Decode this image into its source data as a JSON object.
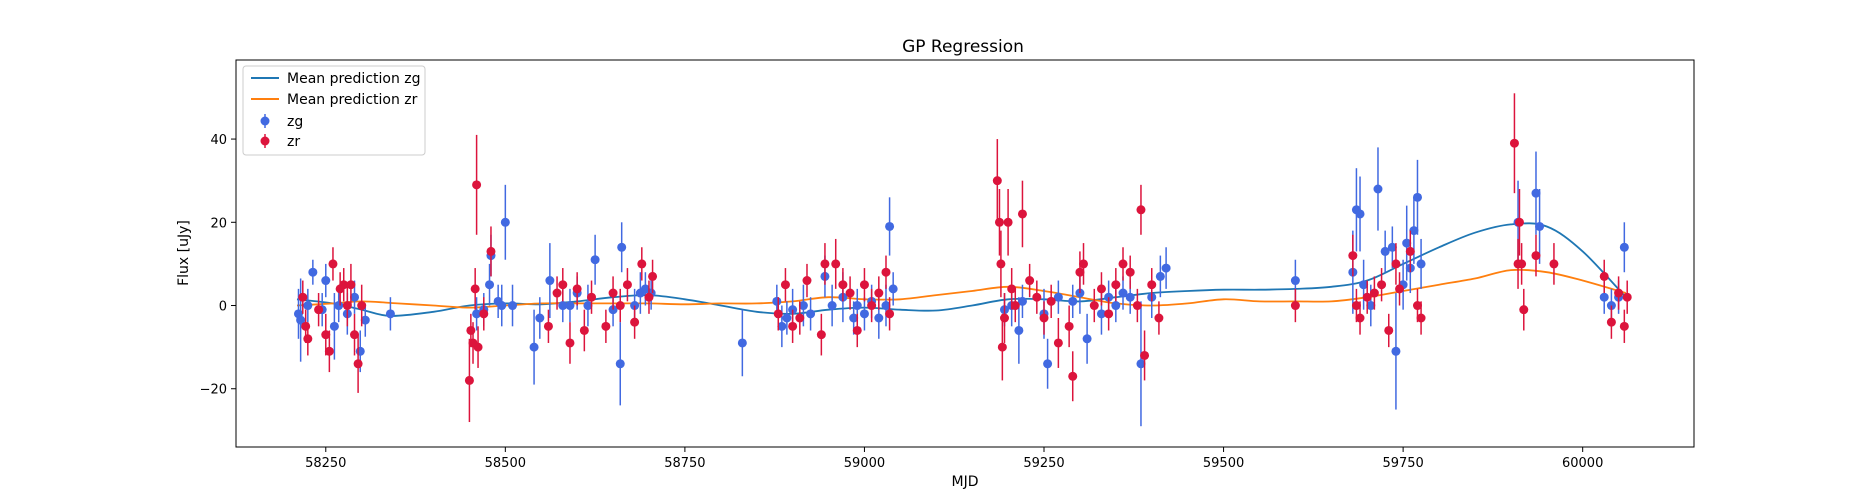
{
  "chart_data": {
    "type": "scatter",
    "title": "GP Regression",
    "xlabel": "MJD",
    "ylabel": "Flux [uJy]",
    "xlim": [
      58125,
      60155
    ],
    "ylim": [
      -34,
      59
    ],
    "xticks": [
      58250,
      58500,
      58750,
      59000,
      59250,
      59500,
      59750,
      60000
    ],
    "yticks": [
      -20,
      0,
      20,
      40
    ],
    "grid": false,
    "legend_position": "top-left",
    "legend_entries": [
      "Mean prediction zg",
      "Mean prediction zr",
      "zg",
      "zr"
    ],
    "colors": {
      "mean_zg": "#1f77b4",
      "mean_zr": "#ff7f0e",
      "zg": "#4169e1",
      "zr": "#dc143c"
    },
    "lines": [
      {
        "name": "Mean prediction zg",
        "x": [
          58210,
          58260,
          58300,
          58340,
          58400,
          58450,
          58500,
          58550,
          58600,
          58650,
          58700,
          58750,
          58800,
          58850,
          58900,
          58950,
          59000,
          59050,
          59100,
          59150,
          59200,
          59250,
          59300,
          59350,
          59400,
          59450,
          59500,
          59550,
          59600,
          59650,
          59700,
          59750,
          59800,
          59850,
          59900,
          59950,
          60000,
          60060
        ],
        "y": [
          1.5,
          0.5,
          -1,
          -2.5,
          -1.5,
          0,
          0.5,
          0.3,
          1,
          2,
          2.5,
          1.5,
          0,
          -1.5,
          -2,
          -1,
          -0.5,
          -1,
          -1.2,
          0,
          1.5,
          1.5,
          1,
          2,
          3,
          3.5,
          3.8,
          3.8,
          4,
          4.5,
          6,
          10,
          14,
          17.5,
          19.5,
          19,
          13,
          2
        ]
      },
      {
        "name": "Mean prediction zr",
        "x": [
          58210,
          58260,
          58300,
          58350,
          58400,
          58450,
          58500,
          58550,
          58600,
          58650,
          58700,
          58750,
          58800,
          58850,
          58900,
          58950,
          59000,
          59050,
          59100,
          59150,
          59200,
          59250,
          59300,
          59350,
          59400,
          59450,
          59500,
          59550,
          59600,
          59650,
          59700,
          59750,
          59800,
          59850,
          59900,
          59950,
          60000,
          60060
        ],
        "y": [
          0,
          0.5,
          1,
          0.5,
          0,
          -0.5,
          0,
          0.5,
          0.5,
          0.5,
          0.5,
          0.3,
          0.5,
          0.5,
          1,
          2,
          1.5,
          1.5,
          2.5,
          3.5,
          4.5,
          3.5,
          2,
          0.5,
          0,
          0.5,
          1.5,
          1,
          1,
          1,
          2,
          3.5,
          5,
          6.5,
          8.5,
          8,
          6,
          3
        ]
      }
    ],
    "series": [
      {
        "name": "zg",
        "points": [
          [
            58212,
            -2,
            6
          ],
          [
            58215,
            -3.5,
            10
          ],
          [
            58225,
            0,
            4
          ],
          [
            58232,
            8,
            3
          ],
          [
            58245,
            -1,
            4
          ],
          [
            58250,
            6,
            4
          ],
          [
            58262,
            -5,
            8
          ],
          [
            58268,
            0,
            4
          ],
          [
            58280,
            -2,
            5
          ],
          [
            58290,
            2,
            4
          ],
          [
            58298,
            -11,
            5
          ],
          [
            58305,
            -3.5,
            4
          ],
          [
            58340,
            -2,
            4
          ],
          [
            58460,
            -2,
            4
          ],
          [
            58470,
            -1,
            4
          ],
          [
            58478,
            5,
            5
          ],
          [
            58480,
            12,
            5
          ],
          [
            58490,
            1,
            4
          ],
          [
            58495,
            0,
            5
          ],
          [
            58500,
            20,
            9
          ],
          [
            58510,
            0,
            5
          ],
          [
            58540,
            -10,
            9
          ],
          [
            58548,
            -3,
            5
          ],
          [
            58562,
            6,
            9
          ],
          [
            58580,
            0,
            4
          ],
          [
            58590,
            0,
            4
          ],
          [
            58600,
            3,
            4
          ],
          [
            58615,
            0,
            5
          ],
          [
            58625,
            11,
            6
          ],
          [
            58650,
            -1,
            4
          ],
          [
            58660,
            -14,
            10
          ],
          [
            58662,
            14,
            6
          ],
          [
            58680,
            0,
            4
          ],
          [
            58688,
            3,
            5
          ],
          [
            58695,
            4,
            4
          ],
          [
            58703,
            3,
            4
          ],
          [
            58830,
            -9,
            8
          ],
          [
            58878,
            1,
            4
          ],
          [
            58885,
            -5,
            5
          ],
          [
            58892,
            -3,
            4
          ],
          [
            58900,
            -1,
            5
          ],
          [
            58915,
            0,
            5
          ],
          [
            58925,
            -2,
            4
          ],
          [
            58945,
            7,
            5
          ],
          [
            58955,
            0,
            5
          ],
          [
            58970,
            2,
            6
          ],
          [
            58985,
            -3,
            4
          ],
          [
            58990,
            0,
            4
          ],
          [
            59000,
            -2,
            4
          ],
          [
            59010,
            1,
            4
          ],
          [
            59020,
            -3,
            5
          ],
          [
            59030,
            0,
            5
          ],
          [
            59035,
            19,
            7
          ],
          [
            59040,
            4,
            4
          ],
          [
            59195,
            -1,
            4
          ],
          [
            59205,
            0,
            5
          ],
          [
            59215,
            -6,
            8
          ],
          [
            59220,
            1,
            4
          ],
          [
            59250,
            -2,
            6
          ],
          [
            59255,
            -14,
            6
          ],
          [
            59270,
            2,
            4
          ],
          [
            59290,
            1,
            4
          ],
          [
            59300,
            3,
            5
          ],
          [
            59310,
            -8,
            6
          ],
          [
            59330,
            -2,
            5
          ],
          [
            59340,
            2,
            4
          ],
          [
            59350,
            0,
            4
          ],
          [
            59360,
            3,
            4
          ],
          [
            59370,
            2,
            4
          ],
          [
            59385,
            -14,
            15
          ],
          [
            59400,
            2,
            5
          ],
          [
            59412,
            7,
            5
          ],
          [
            59420,
            9,
            5
          ],
          [
            59600,
            6,
            5
          ],
          [
            59680,
            8,
            10
          ],
          [
            59685,
            23,
            10
          ],
          [
            59690,
            22,
            9
          ],
          [
            59695,
            5,
            6
          ],
          [
            59705,
            0,
            5
          ],
          [
            59715,
            28,
            10
          ],
          [
            59725,
            13,
            5
          ],
          [
            59735,
            14,
            5
          ],
          [
            59740,
            -11,
            14
          ],
          [
            59750,
            5,
            6
          ],
          [
            59755,
            15,
            9
          ],
          [
            59760,
            9,
            6
          ],
          [
            59765,
            18,
            8
          ],
          [
            59770,
            26,
            9
          ],
          [
            59775,
            10,
            6
          ],
          [
            59910,
            20,
            10
          ],
          [
            59935,
            27,
            10
          ],
          [
            59940,
            19,
            9
          ],
          [
            60030,
            2,
            4
          ],
          [
            60040,
            0,
            4
          ],
          [
            60050,
            2,
            4
          ],
          [
            60058,
            14,
            6
          ]
        ]
      },
      {
        "name": "zr",
        "points": [
          [
            58218,
            2,
            4
          ],
          [
            58222,
            -5,
            4
          ],
          [
            58225,
            -8,
            4
          ],
          [
            58240,
            -1,
            4
          ],
          [
            58250,
            -7,
            5
          ],
          [
            58255,
            -11,
            5
          ],
          [
            58260,
            10,
            4
          ],
          [
            58270,
            4,
            4
          ],
          [
            58275,
            5,
            4
          ],
          [
            58280,
            0,
            5
          ],
          [
            58285,
            5,
            5
          ],
          [
            58290,
            -7,
            5
          ],
          [
            58295,
            -14,
            7
          ],
          [
            58300,
            0,
            5
          ],
          [
            58450,
            -18,
            10
          ],
          [
            58452,
            -6,
            4
          ],
          [
            58455,
            -9,
            5
          ],
          [
            58458,
            4,
            5
          ],
          [
            58460,
            29,
            12
          ],
          [
            58462,
            -10,
            5
          ],
          [
            58470,
            -2,
            4
          ],
          [
            58480,
            13,
            6
          ],
          [
            58560,
            -5,
            4
          ],
          [
            58572,
            3,
            4
          ],
          [
            58580,
            5,
            4
          ],
          [
            58590,
            -9,
            5
          ],
          [
            58600,
            4,
            4
          ],
          [
            58610,
            -6,
            5
          ],
          [
            58620,
            2,
            4
          ],
          [
            58640,
            -5,
            4
          ],
          [
            58650,
            3,
            4
          ],
          [
            58660,
            0,
            4
          ],
          [
            58670,
            5,
            4
          ],
          [
            58680,
            -4,
            4
          ],
          [
            58690,
            10,
            4
          ],
          [
            58700,
            2,
            4
          ],
          [
            58705,
            7,
            4
          ],
          [
            58880,
            -2,
            4
          ],
          [
            58890,
            5,
            4
          ],
          [
            58900,
            -5,
            4
          ],
          [
            58910,
            -3,
            4
          ],
          [
            58920,
            6,
            4
          ],
          [
            58940,
            -7,
            5
          ],
          [
            58945,
            10,
            5
          ],
          [
            58960,
            10,
            6
          ],
          [
            58970,
            5,
            4
          ],
          [
            58980,
            3,
            4
          ],
          [
            58990,
            -6,
            4
          ],
          [
            59000,
            5,
            4
          ],
          [
            59010,
            0,
            4
          ],
          [
            59020,
            3,
            4
          ],
          [
            59030,
            8,
            4
          ],
          [
            59035,
            -2,
            4
          ],
          [
            59185,
            30,
            10
          ],
          [
            59188,
            20,
            8
          ],
          [
            59190,
            10,
            8
          ],
          [
            59192,
            -10,
            8
          ],
          [
            59195,
            -3,
            6
          ],
          [
            59200,
            20,
            8
          ],
          [
            59205,
            4,
            5
          ],
          [
            59210,
            0,
            4
          ],
          [
            59220,
            22,
            8
          ],
          [
            59230,
            6,
            4
          ],
          [
            59240,
            2,
            4
          ],
          [
            59250,
            -3,
            4
          ],
          [
            59260,
            1,
            4
          ],
          [
            59270,
            -9,
            6
          ],
          [
            59285,
            -5,
            5
          ],
          [
            59290,
            -17,
            6
          ],
          [
            59300,
            8,
            5
          ],
          [
            59305,
            10,
            5
          ],
          [
            59320,
            0,
            4
          ],
          [
            59330,
            4,
            4
          ],
          [
            59340,
            -2,
            4
          ],
          [
            59350,
            5,
            4
          ],
          [
            59360,
            10,
            4
          ],
          [
            59370,
            8,
            4
          ],
          [
            59380,
            0,
            4
          ],
          [
            59385,
            23,
            6
          ],
          [
            59390,
            -12,
            6
          ],
          [
            59400,
            5,
            4
          ],
          [
            59410,
            -3,
            4
          ],
          [
            59600,
            0,
            4
          ],
          [
            59680,
            12,
            5
          ],
          [
            59685,
            0,
            4
          ],
          [
            59690,
            -3,
            4
          ],
          [
            59700,
            2,
            4
          ],
          [
            59710,
            3,
            4
          ],
          [
            59720,
            5,
            4
          ],
          [
            59730,
            -6,
            4
          ],
          [
            59740,
            10,
            5
          ],
          [
            59745,
            4,
            4
          ],
          [
            59760,
            13,
            5
          ],
          [
            59770,
            0,
            4
          ],
          [
            59775,
            -3,
            4
          ],
          [
            59905,
            39,
            12
          ],
          [
            59910,
            10,
            6
          ],
          [
            59912,
            20,
            8
          ],
          [
            59915,
            10,
            5
          ],
          [
            59918,
            -1,
            5
          ],
          [
            59935,
            12,
            5
          ],
          [
            59960,
            10,
            5
          ],
          [
            60030,
            7,
            4
          ],
          [
            60040,
            -4,
            4
          ],
          [
            60050,
            3,
            4
          ],
          [
            60058,
            -5,
            4
          ],
          [
            60062,
            2,
            4
          ]
        ]
      }
    ]
  }
}
